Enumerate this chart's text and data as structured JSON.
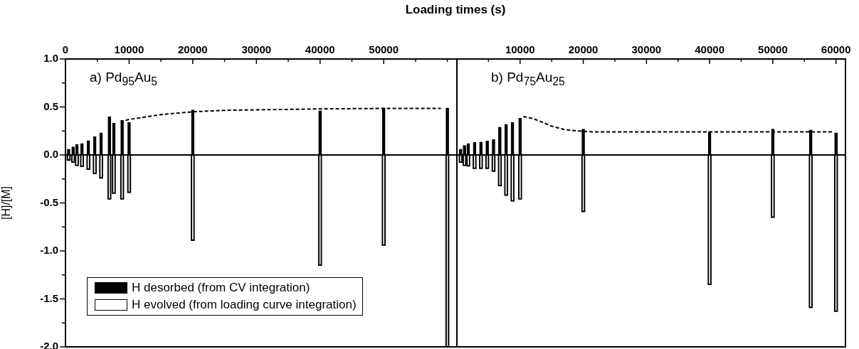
{
  "chart_data": [
    {
      "type": "bar",
      "title": "a) Pd$_{95}$Au$_{5}$",
      "xlabel": "Loading times (s)",
      "ylabel": "[H]/[M]",
      "x": [
        500,
        1200,
        1800,
        2600,
        3600,
        4600,
        5600,
        6900,
        7600,
        8900,
        10000,
        20000,
        40000,
        50000,
        60000
      ],
      "series": [
        {
          "name": "H desorbed (from CV integration)",
          "color": "#000000",
          "values": [
            0.06,
            0.085,
            0.11,
            0.12,
            0.15,
            0.19,
            0.23,
            0.4,
            0.33,
            0.36,
            0.34,
            0.47,
            0.46,
            0.49,
            0.49
          ]
        },
        {
          "name": "H evolved (from loading curve integration)",
          "color": "#000000",
          "values": [
            -0.055,
            -0.075,
            -0.11,
            -0.12,
            -0.15,
            -0.195,
            -0.24,
            -0.46,
            -0.4,
            -0.46,
            -0.39,
            -0.89,
            -1.15,
            -0.94,
            -2.0
          ]
        },
        {
          "type": "line",
          "color": "#000000",
          "line_style": "dashed",
          "marker": "none",
          "x": [
            9450,
            10000,
            12000,
            15000,
            20000,
            25000,
            30000,
            40000,
            50000,
            59000
          ],
          "values": [
            0.36,
            0.37,
            0.39,
            0.42,
            0.45,
            0.465,
            0.47,
            0.48,
            0.485,
            0.485
          ]
        }
      ],
      "xlim": [
        0,
        61500
      ],
      "xticks": [
        0,
        {
          "value": 5000,
          "label": null
        },
        10000,
        {
          "value": 15000,
          "label": null
        },
        20000,
        {
          "value": 25000,
          "label": null
        },
        30000,
        {
          "value": 35000,
          "label": null
        },
        40000,
        {
          "value": 45000,
          "label": null
        },
        50000,
        {
          "value": 55000,
          "label": null
        },
        {
          "value": 60000,
          "label": null
        }
      ],
      "ylim": [
        -2,
        1
      ],
      "yticks": [
        {
          "value": -2,
          "label": "-2.0"
        },
        {
          "value": -1.75,
          "label": null
        },
        -1.5,
        {
          "value": -1.25,
          "label": null
        },
        {
          "value": -1,
          "label": "-1.0"
        },
        {
          "value": -0.75,
          "label": null
        },
        -0.5,
        {
          "value": -0.25,
          "label": null
        },
        {
          "value": 0,
          "label": "0.0"
        },
        {
          "value": 0.25,
          "label": null
        },
        0.5,
        {
          "value": 0.75,
          "label": null
        },
        {
          "value": 1,
          "label": "1.0"
        }
      ],
      "ref_lines": [
        {
          "axis": "y",
          "value": 0,
          "color": "#000000"
        }
      ],
      "legend": "bottom left",
      "grid": false,
      "stacked": true
    },
    {
      "type": "bar",
      "title": "b) Pd$_{75}$Au$_{25}$",
      "x": [
        600,
        1200,
        1800,
        2800,
        3800,
        4800,
        5800,
        6800,
        7800,
        8800,
        10000,
        20000,
        40000,
        50000,
        56000,
        60000
      ],
      "series": [
        {
          "color": "#000000",
          "values": [
            0.06,
            0.1,
            0.12,
            0.13,
            0.135,
            0.145,
            0.16,
            0.29,
            0.32,
            0.34,
            0.385,
            0.27,
            0.24,
            0.27,
            0.26,
            0.23
          ]
        },
        {
          "color": "#000000",
          "values": [
            -0.075,
            -0.11,
            -0.115,
            -0.14,
            -0.14,
            -0.14,
            -0.17,
            -0.32,
            -0.42,
            -0.48,
            -0.46,
            -0.59,
            -1.35,
            -0.65,
            -1.59,
            -1.63
          ]
        },
        {
          "type": "line",
          "color": "#000000",
          "line_style": "dashed",
          "marker": "none",
          "x": [
            10500,
            12000,
            13000,
            15000,
            17000,
            19000,
            22000,
            30000,
            40000,
            50000,
            59500
          ],
          "values": [
            0.4,
            0.38,
            0.355,
            0.3,
            0.265,
            0.25,
            0.24,
            0.24,
            0.24,
            0.24,
            0.24
          ]
        }
      ],
      "xlim": [
        0,
        61500
      ],
      "xticks": [
        {
          "value": 5000,
          "label": null
        },
        10000,
        {
          "value": 15000,
          "label": null
        },
        20000,
        {
          "value": 25000,
          "label": null
        },
        30000,
        {
          "value": 35000,
          "label": null
        },
        40000,
        {
          "value": 45000,
          "label": null
        },
        50000,
        {
          "value": 55000,
          "label": null
        },
        60000
      ],
      "ylim": [
        -2,
        1
      ],
      "yticks": [
        {
          "value": -2,
          "label": null
        },
        {
          "value": -1.75,
          "label": null
        },
        {
          "value": -1.5,
          "label": null
        },
        {
          "value": -1.25,
          "label": null
        },
        {
          "value": -1,
          "label": null
        },
        {
          "value": -0.75,
          "label": null
        },
        {
          "value": -0.5,
          "label": null
        },
        {
          "value": -0.25,
          "label": null
        },
        {
          "value": 0,
          "label": null
        },
        {
          "value": 0.25,
          "label": null
        },
        {
          "value": 0.5,
          "label": null
        },
        {
          "value": 0.75,
          "label": null
        },
        {
          "value": 1,
          "label": null
        }
      ],
      "ref_lines": [
        {
          "axis": "y",
          "value": 0,
          "color": "#000000"
        }
      ],
      "tick_labels": "x",
      "legend": false,
      "grid": false,
      "stacked": true
    }
  ]
}
